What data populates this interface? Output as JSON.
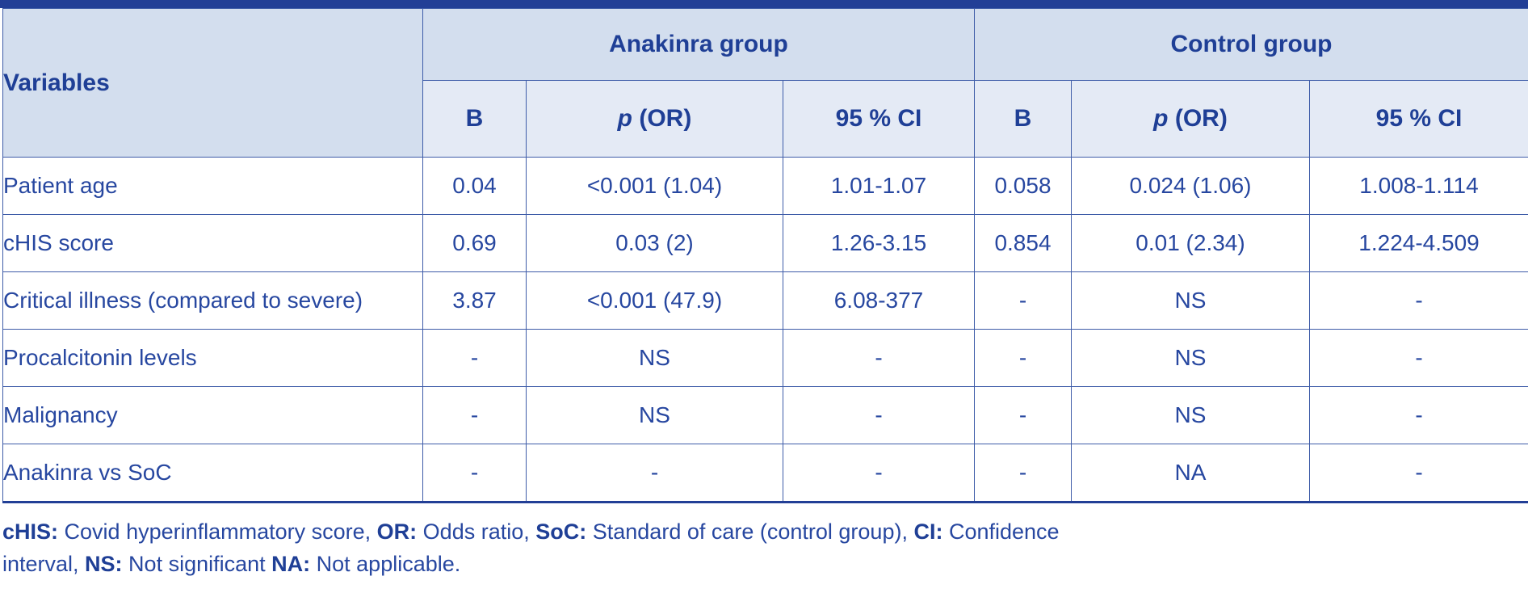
{
  "header": {
    "variables": "Variables",
    "groups": [
      "Anakinra group",
      "Control group"
    ],
    "sub_cols": [
      {
        "prefix": "",
        "italic": "",
        "rest": "B"
      },
      {
        "prefix": "",
        "italic": "p",
        "rest": " (OR)"
      },
      {
        "prefix": "",
        "italic": "",
        "rest": "95 % CI"
      },
      {
        "prefix": "",
        "italic": "",
        "rest": "B"
      },
      {
        "prefix": "",
        "italic": "p",
        "rest": " (OR)"
      },
      {
        "prefix": "",
        "italic": "",
        "rest": "95 % CI"
      }
    ]
  },
  "rows": [
    {
      "variable": "Patient age",
      "cells": [
        "0.04",
        "<0.001 (1.04)",
        "1.01-1.07",
        "0.058",
        "0.024 (1.06)",
        "1.008-1.114"
      ]
    },
    {
      "variable": "cHIS score",
      "cells": [
        "0.69",
        "0.03 (2)",
        "1.26-3.15",
        "0.854",
        "0.01 (2.34)",
        "1.224-4.509"
      ]
    },
    {
      "variable": "Critical illness (compared to severe)",
      "cells": [
        "3.87",
        "<0.001 (47.9)",
        "6.08-377",
        "-",
        "NS",
        "-"
      ]
    },
    {
      "variable": "Procalcitonin levels",
      "cells": [
        "-",
        "NS",
        "-",
        "-",
        "NS",
        "-"
      ]
    },
    {
      "variable": "Malignancy",
      "cells": [
        "-",
        "NS",
        "-",
        "-",
        "NS",
        "-"
      ]
    },
    {
      "variable": "Anakinra vs SoC",
      "cells": [
        "-",
        "-",
        "-",
        "-",
        "NA",
        "-"
      ]
    }
  ],
  "footnote": {
    "items": [
      {
        "abbr": "cHIS:",
        "text": " Covid hyperinflammatory score, "
      },
      {
        "abbr": "OR:",
        "text": " Odds ratio, "
      },
      {
        "abbr": "SoC:",
        "text": " Standard of care (control group), "
      },
      {
        "abbr": "CI:",
        "text": " Confidence"
      },
      {
        "abbr": "",
        "text": "interval, "
      },
      {
        "abbr": "NS:",
        "text": " Not significant "
      },
      {
        "abbr": "NA:",
        "text": " Not applicable."
      }
    ]
  },
  "colors": {
    "border": "#3e5ca8",
    "header_bg": "#d3deee",
    "subheader_bg": "#e4eaf5",
    "text": "#2747a0",
    "bar": "#223f96"
  }
}
